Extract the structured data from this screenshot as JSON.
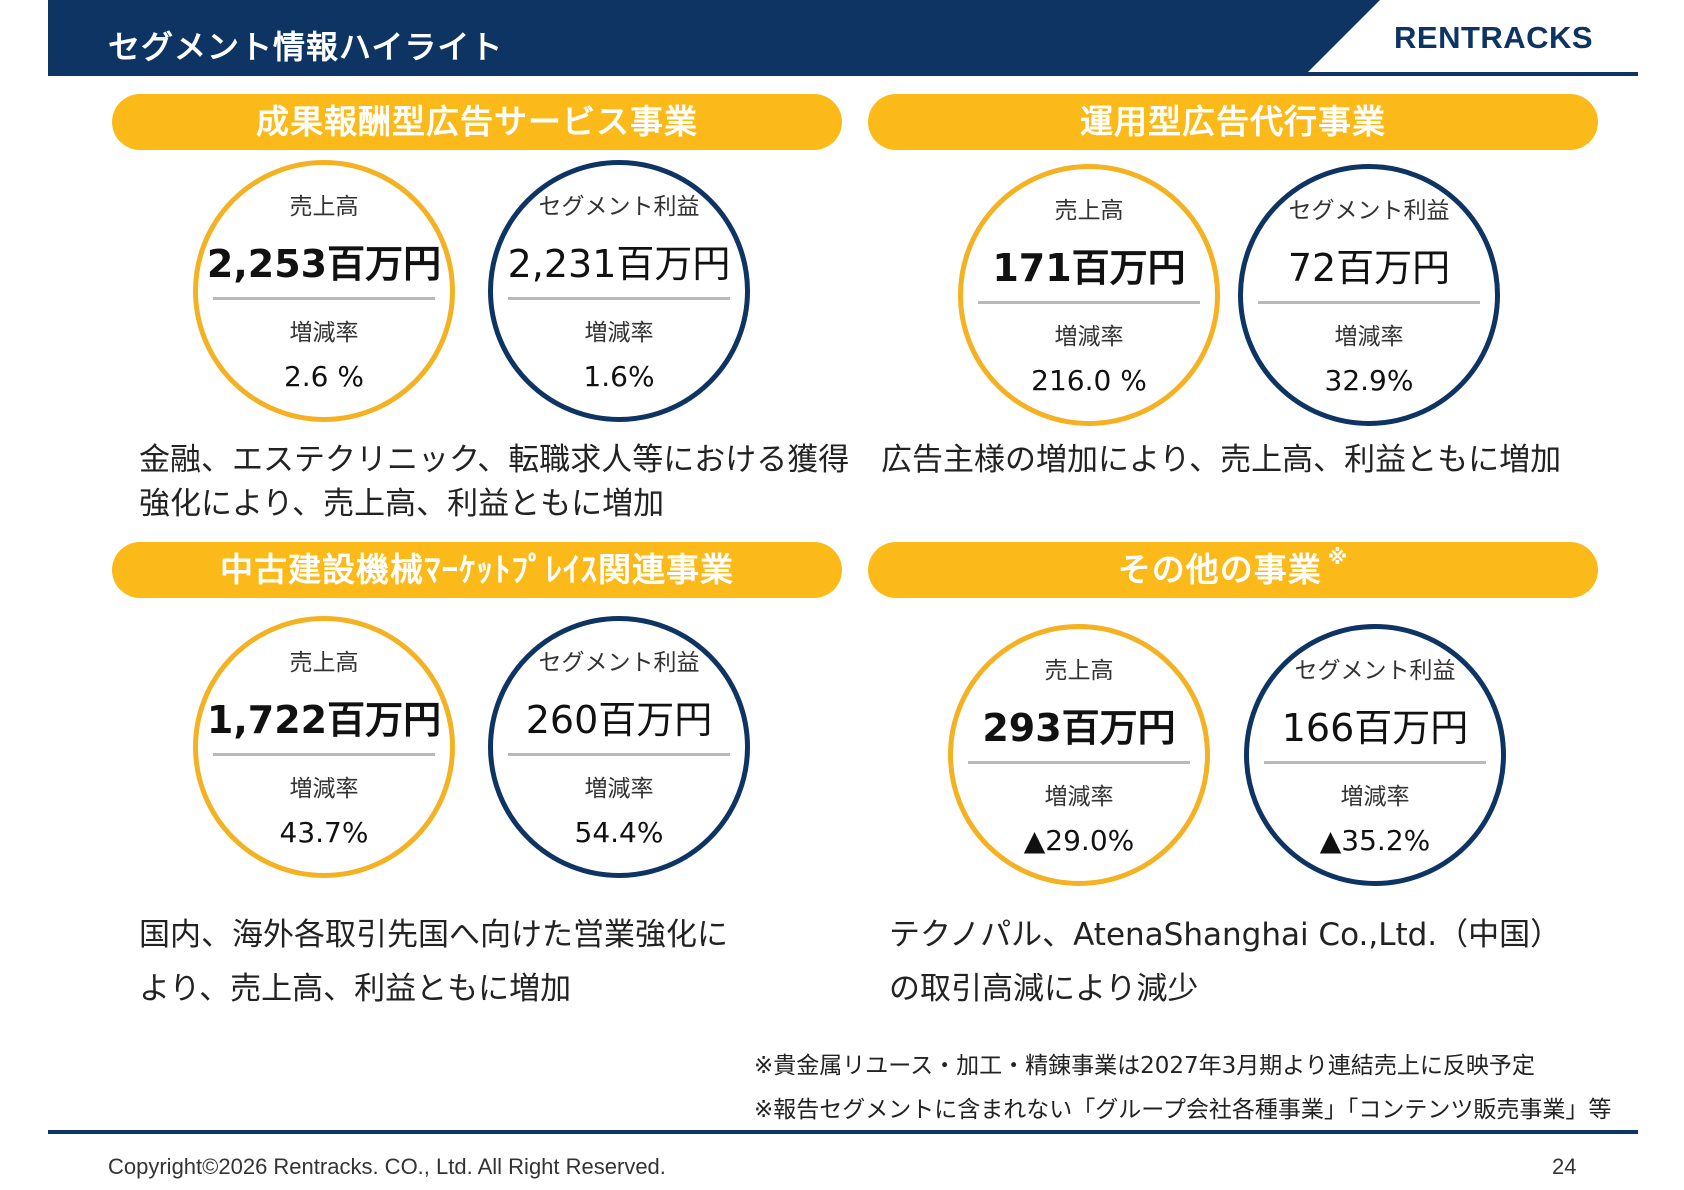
{
  "header": {
    "title": "セグメント情報ハイライト",
    "logo": "RENTRACKS"
  },
  "segments": [
    {
      "title": "成果報酬型広告サービス事業",
      "sales_label": "売上高",
      "sales_value": "2,253百万円",
      "profit_label": "セグメント利益",
      "profit_value": "2,231百万円",
      "rate_label": "増減率",
      "sales_rate": "2.6 %",
      "profit_rate": "1.6%",
      "desc_line1": "金融、エステクリニック、転職求人等における獲得",
      "desc_line2": "強化により、売上高、利益ともに増加"
    },
    {
      "title": "運用型広告代行事業",
      "sales_label": "売上高",
      "sales_value": "171百万円",
      "profit_label": "セグメント利益",
      "profit_value": "72百万円",
      "rate_label": "増減率",
      "sales_rate": "216.0 %",
      "profit_rate": "32.9%",
      "desc_line1": "広告主様の増加により、売上高、利益ともに増加",
      "desc_line2": ""
    },
    {
      "title": "中古建設機械ﾏｰｹｯﾄﾌﾟﾚｲｽ関連事業",
      "sales_label": "売上高",
      "sales_value": "1,722百万円",
      "profit_label": "セグメント利益",
      "profit_value": "260百万円",
      "rate_label": "増減率",
      "sales_rate": "43.7%",
      "profit_rate": "54.4%",
      "desc_line1": "国内、海外各取引先国へ向けた営業強化に",
      "desc_line2": "より、売上高、利益ともに増加"
    },
    {
      "title": "その他の事業",
      "title_mark": "※",
      "sales_label": "売上高",
      "sales_value": "293百万円",
      "profit_label": "セグメント利益",
      "profit_value": "166百万円",
      "rate_label": "増減率",
      "sales_rate": "▲29.0%",
      "profit_rate": "▲35.2%",
      "desc_line1": "テクノパル、AtenaShanghai Co.,Ltd.（中国）",
      "desc_line2": "の取引高減により減少"
    }
  ],
  "notes": [
    "※貴金属リユース・加工・精錬事業は2027年3月期より連結売上に反映予定",
    "※報告セグメントに含まれない「グループ会社各種事業」「コンテンツ販売事業」等"
  ],
  "footer": {
    "copyright": "Copyright©2026 Rentracks. CO., Ltd. All Right Reserved.",
    "page": "24"
  },
  "colors": {
    "navy": "#0e3464",
    "yellow": "#fbba19",
    "yellow_ring": "#f4b122"
  }
}
